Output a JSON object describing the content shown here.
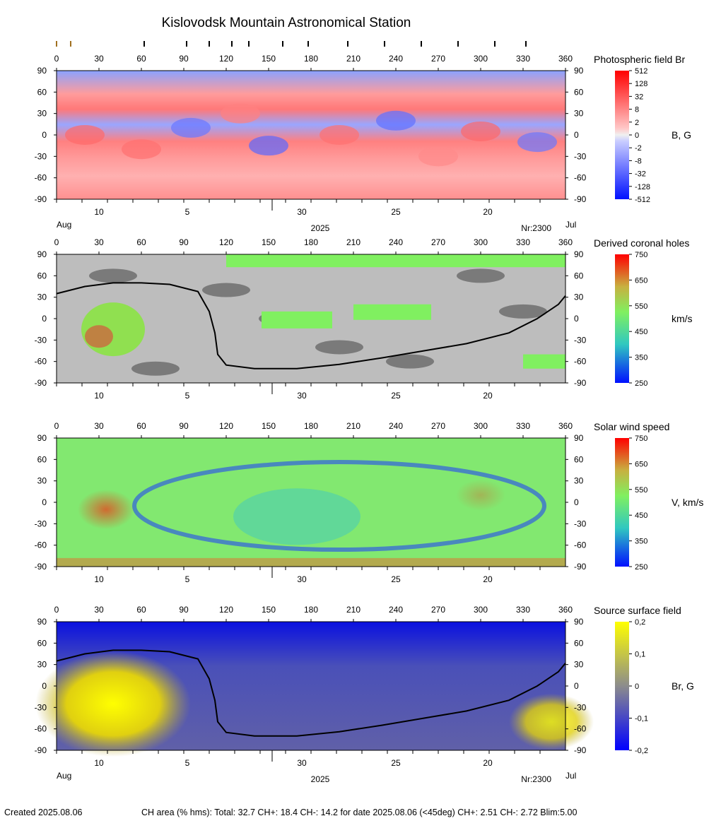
{
  "header": {
    "title": "Kislovodsk Mountain Astronomical Station"
  },
  "chart_data": [
    {
      "type": "heatmap",
      "panel_label": "Photospheric field Br",
      "unit_label": "B, G",
      "x_ticks": [
        0,
        30,
        60,
        90,
        120,
        150,
        180,
        210,
        240,
        270,
        300,
        330,
        360
      ],
      "y_ticks": [
        90,
        60,
        30,
        0,
        -30,
        -60,
        -90
      ],
      "date_ticks": [
        "10",
        "5",
        "30",
        "25",
        "20"
      ],
      "month_left": "Aug",
      "month_right": "Jul",
      "year": "2025",
      "rotation": "Nr:2300",
      "colorbar_ticks": [
        "512",
        "128",
        "32",
        "8",
        "2",
        "0",
        "-2",
        "-8",
        "-32",
        "-128",
        "-512"
      ],
      "colorbar_colors": [
        "#ff0000",
        "#ff3030",
        "#ff6060",
        "#ff8e8e",
        "#ffbcbc",
        "#f0f0f0",
        "#c4c8ff",
        "#9098ff",
        "#5c68ff",
        "#2e3cff",
        "#0010ff"
      ]
    },
    {
      "type": "heatmap",
      "panel_label": "Derived coronal holes",
      "unit_label": "km/s",
      "x_ticks": [
        0,
        30,
        60,
        90,
        120,
        150,
        180,
        210,
        240,
        270,
        300,
        330,
        360
      ],
      "y_ticks": [
        90,
        60,
        30,
        0,
        -30,
        -60,
        -90
      ],
      "date_ticks": [
        "10",
        "5",
        "30",
        "25",
        "20"
      ],
      "colorbar_ticks": [
        "750",
        "650",
        "550",
        "450",
        "350",
        "250"
      ]
    },
    {
      "type": "heatmap",
      "panel_label": "Solar wind speed",
      "unit_label": "V, km/s",
      "x_ticks": [
        0,
        30,
        60,
        90,
        120,
        150,
        180,
        210,
        240,
        270,
        300,
        330,
        360
      ],
      "y_ticks": [
        90,
        60,
        30,
        0,
        -30,
        -60,
        -90
      ],
      "date_ticks": [
        "10",
        "5",
        "30",
        "25",
        "20"
      ],
      "colorbar_ticks": [
        "750",
        "650",
        "550",
        "450",
        "350",
        "250"
      ]
    },
    {
      "type": "heatmap",
      "panel_label": "Source surface field",
      "unit_label": "Br, G",
      "x_ticks": [
        0,
        30,
        60,
        90,
        120,
        150,
        180,
        210,
        240,
        270,
        300,
        330,
        360
      ],
      "y_ticks": [
        90,
        60,
        30,
        0,
        -30,
        -60,
        -90
      ],
      "date_ticks": [
        "10",
        "5",
        "30",
        "25",
        "20"
      ],
      "month_left": "Aug",
      "month_right": "Jul",
      "year": "2025",
      "rotation": "Nr:2300",
      "colorbar_ticks": [
        "0,2",
        "0,1",
        "0",
        "-0,1",
        "-0,2"
      ]
    }
  ],
  "neutral_line": {
    "lon": [
      0,
      20,
      40,
      60,
      80,
      100,
      108,
      112,
      113,
      114,
      120,
      140,
      170,
      200,
      230,
      260,
      290,
      320,
      340,
      355,
      360
    ],
    "lat": [
      35,
      45,
      50,
      50,
      48,
      38,
      10,
      -20,
      -35,
      -50,
      -65,
      -70,
      -70,
      -64,
      -55,
      -45,
      -35,
      -20,
      0,
      20,
      32
    ]
  },
  "footer": {
    "created": "Created  2025.08.06",
    "summary": "CH area (% hms): Total: 32.7 CH+: 18.4   CH-: 14.2 for date 2025.08.06 (<45deg) CH+: 2.51    CH-: 2.72 Blim:5.00"
  }
}
